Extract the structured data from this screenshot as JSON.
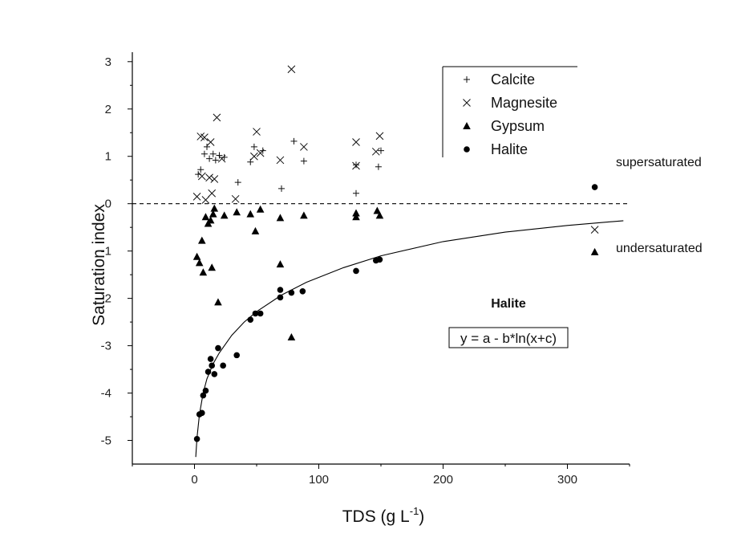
{
  "chart_data": {
    "type": "scatter",
    "title": "",
    "xlabel": "TDS (g L",
    "xlabel_superscript": "-1",
    "xlabel_close": ")",
    "ylabel": "Saturation index",
    "xlim": [
      -50,
      350
    ],
    "ylim": [
      -5.5,
      3.2
    ],
    "xticks": [
      0,
      100,
      200,
      300
    ],
    "yticks": [
      -5,
      -4,
      -3,
      -2,
      -1,
      0,
      1,
      2,
      3
    ],
    "reference_line": {
      "y": 0,
      "style": "dashed"
    },
    "legend_position": "top-right",
    "series": [
      {
        "name": "Calcite",
        "marker": "plus",
        "points": [
          [
            3,
            0.62
          ],
          [
            5,
            0.72
          ],
          [
            8,
            1.05
          ],
          [
            10,
            1.2
          ],
          [
            12,
            0.95
          ],
          [
            15,
            1.05
          ],
          [
            17,
            0.92
          ],
          [
            20,
            1.02
          ],
          [
            24,
            0.98
          ],
          [
            35,
            0.45
          ],
          [
            45,
            0.88
          ],
          [
            48,
            1.2
          ],
          [
            55,
            1.12
          ],
          [
            70,
            0.32
          ],
          [
            80,
            1.32
          ],
          [
            88,
            0.9
          ],
          [
            130,
            0.22
          ],
          [
            130,
            0.82
          ],
          [
            148,
            0.78
          ],
          [
            150,
            1.12
          ]
        ]
      },
      {
        "name": "Magnesite",
        "marker": "cross",
        "points": [
          [
            2,
            0.15
          ],
          [
            5,
            1.42
          ],
          [
            6,
            0.58
          ],
          [
            8,
            1.4
          ],
          [
            9,
            0.08
          ],
          [
            12,
            0.55
          ],
          [
            13,
            1.3
          ],
          [
            14,
            0.22
          ],
          [
            16,
            0.52
          ],
          [
            18,
            1.82
          ],
          [
            22,
            0.95
          ],
          [
            33,
            0.1
          ],
          [
            48,
            1.0
          ],
          [
            50,
            1.52
          ],
          [
            53,
            1.07
          ],
          [
            69,
            0.92
          ],
          [
            78,
            2.84
          ],
          [
            88,
            1.2
          ],
          [
            130,
            1.3
          ],
          [
            130,
            0.8
          ],
          [
            146,
            1.1
          ],
          [
            149,
            1.43
          ],
          [
            322,
            -0.55
          ]
        ]
      },
      {
        "name": "Gypsum",
        "marker": "triangle",
        "points": [
          [
            2,
            -1.12
          ],
          [
            4,
            -1.25
          ],
          [
            6,
            -0.78
          ],
          [
            7,
            -1.45
          ],
          [
            9,
            -0.28
          ],
          [
            11,
            -0.42
          ],
          [
            13,
            -0.35
          ],
          [
            14,
            -1.35
          ],
          [
            15,
            -0.22
          ],
          [
            16,
            -0.1
          ],
          [
            19,
            -2.08
          ],
          [
            24,
            -0.25
          ],
          [
            34,
            -0.18
          ],
          [
            45,
            -0.22
          ],
          [
            49,
            -0.58
          ],
          [
            53,
            -0.12
          ],
          [
            69,
            -0.3
          ],
          [
            69,
            -1.28
          ],
          [
            78,
            -2.82
          ],
          [
            88,
            -0.25
          ],
          [
            130,
            -0.28
          ],
          [
            130,
            -0.2
          ],
          [
            147,
            -0.15
          ],
          [
            149,
            -0.25
          ],
          [
            322,
            -1.02
          ]
        ]
      },
      {
        "name": "Halite",
        "marker": "circle",
        "points": [
          [
            2,
            -4.97
          ],
          [
            4,
            -4.45
          ],
          [
            6,
            -4.42
          ],
          [
            7,
            -4.05
          ],
          [
            9,
            -3.95
          ],
          [
            11,
            -3.55
          ],
          [
            13,
            -3.28
          ],
          [
            14,
            -3.42
          ],
          [
            16,
            -3.6
          ],
          [
            19,
            -3.05
          ],
          [
            23,
            -3.42
          ],
          [
            34,
            -3.2
          ],
          [
            45,
            -2.45
          ],
          [
            49,
            -2.32
          ],
          [
            53,
            -2.32
          ],
          [
            69,
            -1.82
          ],
          [
            69,
            -1.98
          ],
          [
            78,
            -1.88
          ],
          [
            87,
            -1.85
          ],
          [
            130,
            -1.42
          ],
          [
            146,
            -1.2
          ],
          [
            149,
            -1.18
          ],
          [
            322,
            0.35
          ]
        ]
      }
    ],
    "fit_curve": {
      "label": "Halite",
      "equation": "y = a - b*ln(x+c)",
      "points": [
        [
          1,
          -5.35
        ],
        [
          2,
          -4.95
        ],
        [
          4,
          -4.45
        ],
        [
          7,
          -4.0
        ],
        [
          10,
          -3.7
        ],
        [
          15,
          -3.38
        ],
        [
          20,
          -3.15
        ],
        [
          30,
          -2.78
        ],
        [
          40,
          -2.5
        ],
        [
          50,
          -2.28
        ],
        [
          70,
          -1.93
        ],
        [
          90,
          -1.66
        ],
        [
          120,
          -1.35
        ],
        [
          150,
          -1.1
        ],
        [
          200,
          -0.8
        ],
        [
          250,
          -0.6
        ],
        [
          300,
          -0.46
        ],
        [
          345,
          -0.36
        ]
      ]
    },
    "annotations": [
      "supersaturated",
      "undersaturated"
    ]
  }
}
